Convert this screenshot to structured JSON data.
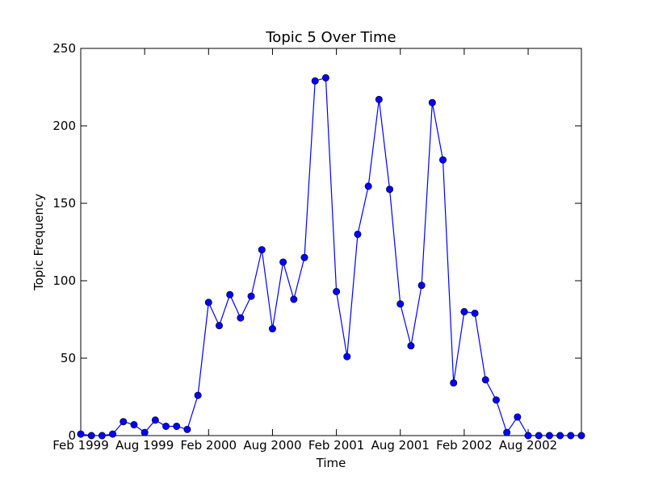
{
  "chart_data": {
    "type": "line",
    "title": "Topic 5 Over Time",
    "xlabel": "Time",
    "ylabel": "Topic Frequency",
    "ylim": [
      0,
      250
    ],
    "y_ticks": [
      "0",
      "50",
      "100",
      "150",
      "200",
      "250"
    ],
    "x_ticks": [
      "Feb 1999",
      "Aug 1999",
      "Feb 2000",
      "Aug 2000",
      "Feb 2001",
      "Aug 2001",
      "Feb 2002",
      "Aug 2002"
    ],
    "grid": false,
    "legend": "none",
    "x": [
      "1999-02",
      "1999-03",
      "1999-04",
      "1999-05",
      "1999-06",
      "1999-07",
      "1999-08",
      "1999-09",
      "1999-10",
      "1999-11",
      "1999-12",
      "2000-01",
      "2000-02",
      "2000-03",
      "2000-04",
      "2000-05",
      "2000-06",
      "2000-07",
      "2000-08",
      "2000-09",
      "2000-10",
      "2000-11",
      "2000-12",
      "2001-01",
      "2001-02",
      "2001-03",
      "2001-04",
      "2001-05",
      "2001-06",
      "2001-07",
      "2001-08",
      "2001-09",
      "2001-10",
      "2001-11",
      "2001-12",
      "2002-01",
      "2002-02",
      "2002-03",
      "2002-04",
      "2002-05",
      "2002-06",
      "2002-07",
      "2002-08",
      "2002-09",
      "2002-10",
      "2002-11",
      "2002-12",
      "2003-01"
    ],
    "series": [
      {
        "color": "#0000ff",
        "values": [
          1,
          0,
          0,
          1,
          9,
          7,
          2,
          10,
          6,
          6,
          4,
          26,
          86,
          71,
          91,
          76,
          90,
          120,
          69,
          112,
          88,
          115,
          229,
          231,
          93,
          51,
          130,
          161,
          217,
          159,
          85,
          58,
          97,
          215,
          178,
          34,
          80,
          79,
          36,
          23,
          2,
          12,
          0,
          0,
          0,
          0,
          0,
          0
        ]
      }
    ]
  }
}
